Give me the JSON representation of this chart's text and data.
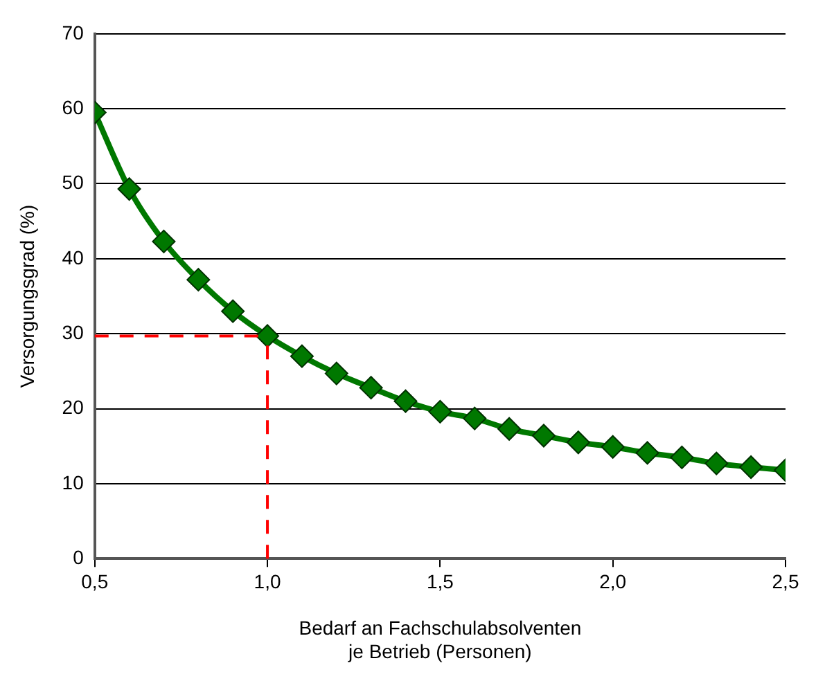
{
  "chart_data": {
    "type": "line",
    "xlabel": "Bedarf an Fachschulabsolventen\nje Betrieb (Personen)",
    "ylabel": "Versorgungsgrad (%)",
    "x": [
      0.5,
      0.6,
      0.7,
      0.8,
      0.9,
      1.0,
      1.1,
      1.2,
      1.3,
      1.4,
      1.5,
      1.6,
      1.7,
      1.8,
      1.9,
      2.0,
      2.1,
      2.2,
      2.3,
      2.4,
      2.5
    ],
    "series": [
      {
        "color": "#007800",
        "values": [
          59.5,
          49.3,
          42.3,
          37.2,
          33.0,
          29.7,
          27.0,
          24.7,
          22.8,
          21.0,
          19.6,
          18.7,
          17.3,
          16.4,
          15.5,
          14.9,
          14.1,
          13.5,
          12.7,
          12.2,
          11.8
        ]
      }
    ],
    "xlim": [
      0.5,
      2.5
    ],
    "xticks": [
      {
        "value": 0.5,
        "label": "0,5"
      },
      {
        "value": 1.0,
        "label": "1,0"
      },
      {
        "value": 1.5,
        "label": "1,5"
      },
      {
        "value": 2.0,
        "label": "2,0"
      },
      {
        "value": 2.5,
        "label": "2,5"
      }
    ],
    "ylim": [
      0,
      70
    ],
    "yticks": [
      0,
      10,
      20,
      30,
      40,
      50,
      60,
      70
    ],
    "ref_lines": [
      {
        "axis": "y",
        "value": 29.7,
        "color": "#ff0000",
        "line_style": "dashed"
      },
      {
        "axis": "x",
        "value": 1.0,
        "color": "#ff0000",
        "line_style": "dashed"
      }
    ],
    "grid": "y",
    "legend": false,
    "marker": "diamond",
    "line_style": "solid"
  }
}
